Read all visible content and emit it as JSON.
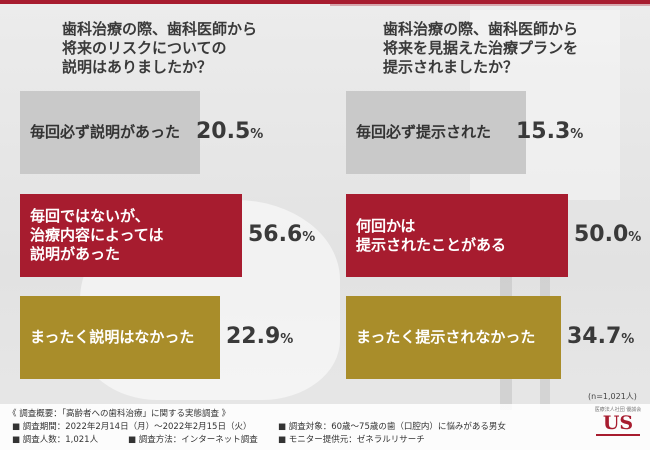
{
  "colors": {
    "grey": "#c9c9c9",
    "red": "#a71c2f",
    "gold": "#a98d2a",
    "accent": "#a71c2f"
  },
  "left": {
    "title": "歯科治療の際、歯科医師から\n将来のリスクについての\n説明はありましたか？",
    "bars": [
      {
        "label": "毎回必ず説明があった",
        "value": 20.5
      },
      {
        "label": "毎回ではないが、\n治療内容によっては\n説明があった",
        "value": 56.6
      },
      {
        "label": "まったく説明はなかった",
        "value": 22.9
      }
    ]
  },
  "right": {
    "title": "歯科治療の際、歯科医師から\n将来を見据えた治療プランを\n提示されましたか？",
    "bars": [
      {
        "label": "毎回必ず提示された",
        "value": 15.3
      },
      {
        "label": "何回かは\n提示されたことがある",
        "value": 50.0
      },
      {
        "label": "まったく提示されなかった",
        "value": 34.7
      }
    ]
  },
  "chart_data": [
    {
      "type": "bar",
      "title": "歯科治療の際、歯科医師から将来のリスクについての説明はありましたか？",
      "categories": [
        "毎回必ず説明があった",
        "毎回ではないが、治療内容によっては説明があった",
        "まったく説明はなかった"
      ],
      "values": [
        20.5,
        56.6,
        22.9
      ]
    },
    {
      "type": "bar",
      "title": "歯科治療の際、歯科医師から将来を見据えた治療プランを提示されましたか？",
      "categories": [
        "毎回必ず提示された",
        "何回かは提示されたことがある",
        "まったく提示されなかった"
      ],
      "values": [
        15.3,
        50.0,
        34.7
      ]
    }
  ],
  "percent_unit": "%",
  "n_note": "(n=1,021人)",
  "footer": {
    "survey": "《 調査概要：「高齢者への歯科治療」に関する実態調査 》",
    "period": "■ 調査期間：2022年2月14日（月）〜2022年2月15日（火）",
    "count": "■ 調査人数：1,021人",
    "method": "■ 調査方法：インターネット調査",
    "target": "■ 調査対象：60歳〜75歳の歯（口腔内）に悩みがある男女",
    "provider": "■ モニター提供元：ゼネラルリサーチ"
  },
  "logo": {
    "text": "US",
    "small": "医療法人社団 優誠会"
  }
}
